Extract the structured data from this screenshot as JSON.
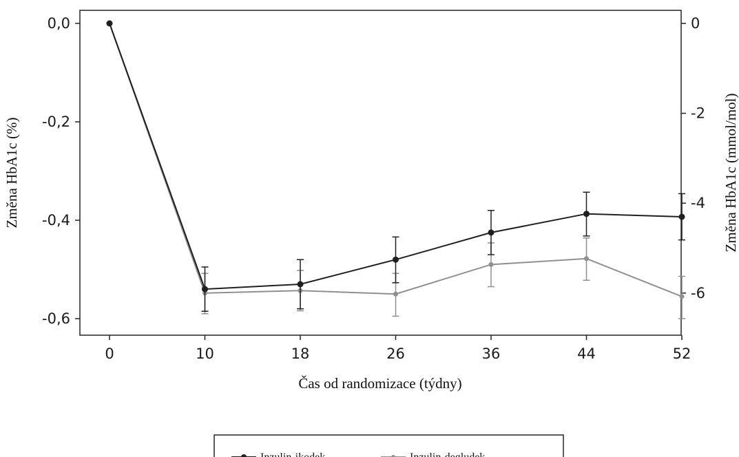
{
  "chart_data": {
    "type": "line",
    "x": [
      0,
      10,
      18,
      26,
      36,
      44,
      52
    ],
    "x_tick_labels": [
      "0",
      "10",
      "18",
      "26",
      "36",
      "44",
      "52"
    ],
    "xlabel": "Čas od randomizace (týdny)",
    "ylabel_left": "Změna HbA1c (%)",
    "ylabel_right": "Změna HbA1c (mmol/mol)",
    "ylim_left": [
      -0.63,
      0.0
    ],
    "ylim_right": [
      -6.89,
      0.0
    ],
    "left_ticks": [
      0.0,
      -0.2,
      -0.4,
      -0.6
    ],
    "left_tick_labels": [
      "0,0",
      "-0,2",
      "-0,4",
      "-0,6"
    ],
    "right_ticks": [
      0,
      -2,
      -4,
      -6
    ],
    "right_tick_labels": [
      "0",
      "-2",
      "-4",
      "-6"
    ],
    "grid": false,
    "legend_position": "bottom-center",
    "series": [
      {
        "name": "Inzulin-ikodek",
        "color": "#1f1f1f",
        "values": [
          0.0,
          -0.54,
          -0.53,
          -0.48,
          -0.425,
          -0.387,
          -0.393
        ],
        "err_low": [
          0.0,
          -0.585,
          -0.58,
          -0.527,
          -0.47,
          -0.432,
          -0.44
        ],
        "err_high": [
          0.0,
          -0.495,
          -0.48,
          -0.434,
          -0.38,
          -0.343,
          -0.346
        ]
      },
      {
        "name": "Inzulin-degludek",
        "color": "#8f8f8f",
        "values": [
          0.0,
          -0.548,
          -0.543,
          -0.55,
          -0.49,
          -0.478,
          -0.555
        ],
        "err_low": [
          0.0,
          -0.59,
          -0.584,
          -0.595,
          -0.535,
          -0.522,
          -0.6
        ],
        "err_high": [
          0.0,
          -0.508,
          -0.502,
          -0.508,
          -0.446,
          -0.436,
          -0.514
        ]
      }
    ]
  }
}
